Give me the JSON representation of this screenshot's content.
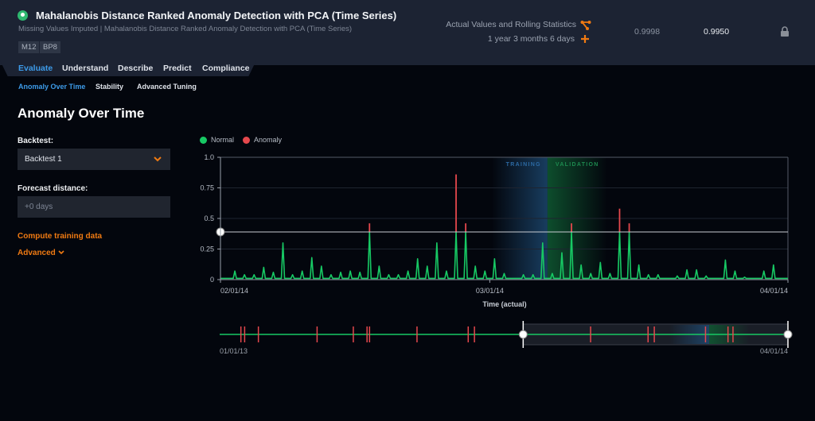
{
  "header": {
    "title": "Mahalanobis Distance Ranked Anomaly Detection with PCA (Time Series)",
    "subtitle": "Missing Values Imputed | Mahalanobis Distance Ranked Anomaly Detection with PCA (Time Series)",
    "badges": [
      "M12",
      "BP8"
    ],
    "feature_list": "Actual Values and Rolling Statistics",
    "duration": "1 year 3 months 6 days",
    "metric_validation": "0.9998",
    "metric_backtest": "0.9950",
    "icons": {
      "logo": "model-icon",
      "feature": "branch-icon",
      "duration": "plus-icon",
      "lock": "lock-icon"
    }
  },
  "tabs": [
    {
      "label": "Evaluate",
      "active": true
    },
    {
      "label": "Understand"
    },
    {
      "label": "Describe"
    },
    {
      "label": "Predict"
    },
    {
      "label": "Compliance"
    }
  ],
  "subtabs": [
    {
      "label": "Anomaly Over Time",
      "active": true
    },
    {
      "label": "Stability"
    },
    {
      "label": "Advanced Tuning"
    }
  ],
  "panel": {
    "title": "Anomaly Over Time",
    "backtest_label": "Backtest:",
    "backtest_value": "Backtest 1",
    "forecast_label": "Forecast distance:",
    "forecast_placeholder": "+0 days",
    "compute_link": "Compute training data",
    "advanced_link": "Advanced"
  },
  "colors": {
    "accent": "#f07a12",
    "normal": "#17c964",
    "anomaly": "#e5484d",
    "training": "#1f4f7a",
    "validation": "#0f5a32",
    "link": "#3d9be9"
  },
  "chart_data": {
    "type": "line",
    "legend": [
      {
        "name": "Normal",
        "color": "#17c964"
      },
      {
        "name": "Anomaly",
        "color": "#e5484d"
      }
    ],
    "legend_placement": "top-left",
    "xlabel": "Time (actual)",
    "x_ticks": [
      "02/01/14",
      "03/01/14",
      "04/01/14"
    ],
    "xlim": [
      "2014-02-01",
      "2014-04-01"
    ],
    "y_ticks": [
      "0",
      "0.25",
      "0.5",
      "0.75",
      "1.0"
    ],
    "ylim": [
      0,
      1
    ],
    "grid": true,
    "baseline": 0.01,
    "threshold": 0.39,
    "regions": [
      {
        "label": "TRAINING",
        "end": "2014-03-07"
      },
      {
        "label": "VALIDATION",
        "start": "2014-03-07"
      }
    ],
    "spikes": [
      {
        "date": "2014-02-02",
        "value": 0.07
      },
      {
        "date": "2014-02-03",
        "value": 0.04
      },
      {
        "date": "2014-02-04",
        "value": 0.04
      },
      {
        "date": "2014-02-05",
        "value": 0.1
      },
      {
        "date": "2014-02-06",
        "value": 0.06
      },
      {
        "date": "2014-02-07",
        "value": 0.3
      },
      {
        "date": "2014-02-08",
        "value": 0.04
      },
      {
        "date": "2014-02-09",
        "value": 0.07
      },
      {
        "date": "2014-02-10",
        "value": 0.18
      },
      {
        "date": "2014-02-11",
        "value": 0.11
      },
      {
        "date": "2014-02-12",
        "value": 0.04
      },
      {
        "date": "2014-02-13",
        "value": 0.06
      },
      {
        "date": "2014-02-14",
        "value": 0.07
      },
      {
        "date": "2014-02-15",
        "value": 0.06
      },
      {
        "date": "2014-02-16",
        "value": 0.46
      },
      {
        "date": "2014-02-17",
        "value": 0.11
      },
      {
        "date": "2014-02-18",
        "value": 0.04
      },
      {
        "date": "2014-02-19",
        "value": 0.04
      },
      {
        "date": "2014-02-20",
        "value": 0.07
      },
      {
        "date": "2014-02-21",
        "value": 0.17
      },
      {
        "date": "2014-02-22",
        "value": 0.11
      },
      {
        "date": "2014-02-23",
        "value": 0.3
      },
      {
        "date": "2014-02-24",
        "value": 0.07
      },
      {
        "date": "2014-02-25",
        "value": 0.86
      },
      {
        "date": "2014-02-26",
        "value": 0.46
      },
      {
        "date": "2014-02-27",
        "value": 0.11
      },
      {
        "date": "2014-02-28",
        "value": 0.07
      },
      {
        "date": "2014-03-01",
        "value": 0.17
      },
      {
        "date": "2014-03-02",
        "value": 0.05
      },
      {
        "date": "2014-03-04",
        "value": 0.04
      },
      {
        "date": "2014-03-05",
        "value": 0.04
      },
      {
        "date": "2014-03-06",
        "value": 0.3
      },
      {
        "date": "2014-03-07",
        "value": 0.05
      },
      {
        "date": "2014-03-08",
        "value": 0.22
      },
      {
        "date": "2014-03-09",
        "value": 0.46
      },
      {
        "date": "2014-03-10",
        "value": 0.12
      },
      {
        "date": "2014-03-11",
        "value": 0.05
      },
      {
        "date": "2014-03-12",
        "value": 0.14
      },
      {
        "date": "2014-03-13",
        "value": 0.05
      },
      {
        "date": "2014-03-14",
        "value": 0.58
      },
      {
        "date": "2014-03-15",
        "value": 0.46
      },
      {
        "date": "2014-03-16",
        "value": 0.12
      },
      {
        "date": "2014-03-17",
        "value": 0.04
      },
      {
        "date": "2014-03-18",
        "value": 0.04
      },
      {
        "date": "2014-03-20",
        "value": 0.03
      },
      {
        "date": "2014-03-21",
        "value": 0.08
      },
      {
        "date": "2014-03-22",
        "value": 0.08
      },
      {
        "date": "2014-03-23",
        "value": 0.03
      },
      {
        "date": "2014-03-25",
        "value": 0.16
      },
      {
        "date": "2014-03-26",
        "value": 0.07
      },
      {
        "date": "2014-03-27",
        "value": 0.02
      },
      {
        "date": "2014-03-29",
        "value": 0.07
      },
      {
        "date": "2014-03-30",
        "value": 0.12
      }
    ],
    "navigator": {
      "x_ticks": [
        "01/01/13",
        "04/01/14"
      ],
      "xlim": [
        "2013-01-01",
        "2014-04-01"
      ],
      "selection": [
        "2013-09-01",
        "2014-04-01"
      ],
      "anomaly_dates": [
        "2013-01-18",
        "2013-01-21",
        "2013-02-01",
        "2013-03-20",
        "2013-04-18",
        "2013-04-29",
        "2013-05-01",
        "2013-06-08",
        "2013-07-19",
        "2013-07-24",
        "2013-10-25",
        "2013-12-10",
        "2013-12-15",
        "2014-01-25",
        "2014-02-12",
        "2014-02-16"
      ]
    }
  }
}
